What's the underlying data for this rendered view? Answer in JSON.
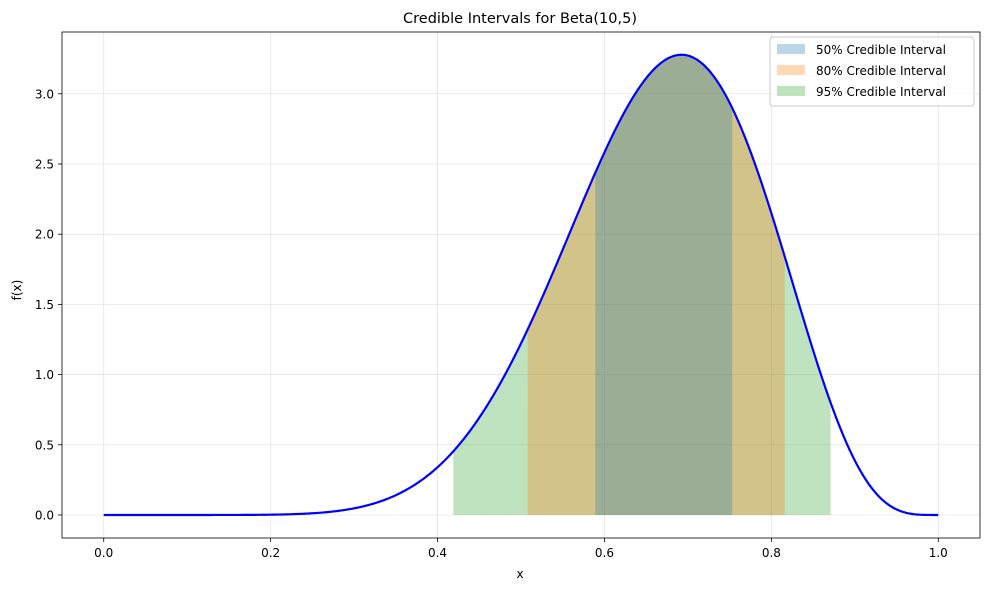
{
  "chart_data": {
    "type": "area",
    "title": "Credible Intervals for Beta(10,5)",
    "xlabel": "x",
    "ylabel": "f(x)",
    "xlim": [
      -0.05,
      1.05
    ],
    "ylim": [
      -0.164,
      3.44
    ],
    "xticks": [
      0.0,
      0.2,
      0.4,
      0.6,
      0.8,
      1.0
    ],
    "xtick_labels": [
      "0.0",
      "0.2",
      "0.4",
      "0.6",
      "0.8",
      "1.0"
    ],
    "yticks": [
      0.0,
      0.5,
      1.0,
      1.5,
      2.0,
      2.5,
      3.0
    ],
    "ytick_labels": [
      "0.0",
      "0.5",
      "1.0",
      "1.5",
      "2.0",
      "2.5",
      "3.0"
    ],
    "grid": true,
    "legend_position": "top-right",
    "density": {
      "distribution": "Beta",
      "alpha": 10,
      "beta": 5,
      "color": "#0000ff"
    },
    "series": [
      {
        "name": "50% Credible Interval",
        "lower": 0.589,
        "upper": 0.753,
        "color": "#1f77b4",
        "alpha": 0.3
      },
      {
        "name": "80% Credible Interval",
        "lower": 0.508,
        "upper": 0.816,
        "color": "#ff7f0e",
        "alpha": 0.3
      },
      {
        "name": "95% Credible Interval",
        "lower": 0.419,
        "upper": 0.871,
        "color": "#2ca02c",
        "alpha": 0.3
      }
    ]
  }
}
